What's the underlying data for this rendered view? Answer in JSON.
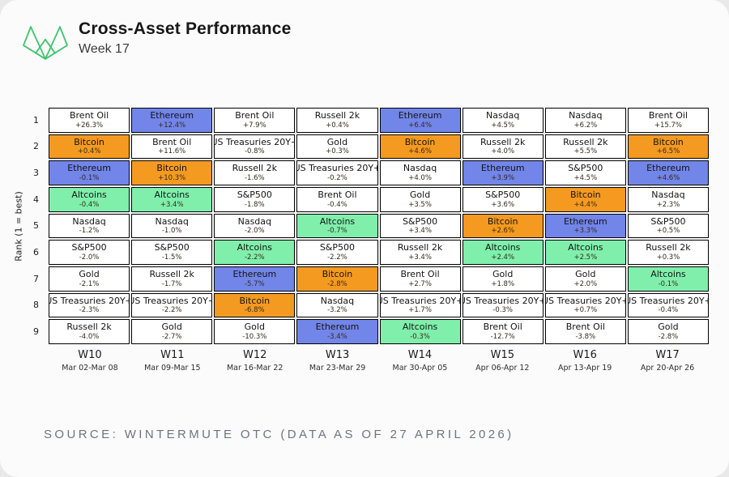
{
  "header": {
    "title": "Cross-Asset Performance",
    "subtitle": "Week 17",
    "logo": "wintermute-logo",
    "logo_color": "#3ec46d"
  },
  "asset_colors": {
    "Bitcoin": "#f59a20",
    "Ethereum": "#7285e8",
    "Altcoins": "#80efac",
    "default": "#ffffff"
  },
  "chart_data": {
    "type": "table",
    "title": "Cross-Asset Performance",
    "subtitle": "Week 17",
    "ylabel": "Rank (1 = best)",
    "ranks": [
      1,
      2,
      3,
      4,
      5,
      6,
      7,
      8,
      9
    ],
    "weeks": [
      {
        "label": "W10",
        "dates": "Mar 02-Mar 08",
        "cells": [
          {
            "asset": "Brent Oil",
            "change": "+26.3%"
          },
          {
            "asset": "Bitcoin",
            "change": "+0.4%"
          },
          {
            "asset": "Ethereum",
            "change": "-0.1%"
          },
          {
            "asset": "Altcoins",
            "change": "-0.4%"
          },
          {
            "asset": "Nasdaq",
            "change": "-1.2%"
          },
          {
            "asset": "S&P500",
            "change": "-2.0%"
          },
          {
            "asset": "Gold",
            "change": "-2.1%"
          },
          {
            "asset": "US Treasuries 20Y+",
            "change": "-2.3%"
          },
          {
            "asset": "Russell 2k",
            "change": "-4.0%"
          }
        ]
      },
      {
        "label": "W11",
        "dates": "Mar 09-Mar 15",
        "cells": [
          {
            "asset": "Ethereum",
            "change": "+12.4%"
          },
          {
            "asset": "Brent Oil",
            "change": "+11.6%"
          },
          {
            "asset": "Bitcoin",
            "change": "+10.3%"
          },
          {
            "asset": "Altcoins",
            "change": "+3.4%"
          },
          {
            "asset": "Nasdaq",
            "change": "-1.0%"
          },
          {
            "asset": "S&P500",
            "change": "-1.5%"
          },
          {
            "asset": "Russell 2k",
            "change": "-1.7%"
          },
          {
            "asset": "US Treasuries 20Y+",
            "change": "-2.2%"
          },
          {
            "asset": "Gold",
            "change": "-2.7%"
          }
        ]
      },
      {
        "label": "W12",
        "dates": "Mar 16-Mar 22",
        "cells": [
          {
            "asset": "Brent Oil",
            "change": "+7.9%"
          },
          {
            "asset": "US Treasuries 20Y+",
            "change": "-0.8%"
          },
          {
            "asset": "Russell 2k",
            "change": "-1.6%"
          },
          {
            "asset": "S&P500",
            "change": "-1.8%"
          },
          {
            "asset": "Nasdaq",
            "change": "-2.0%"
          },
          {
            "asset": "Altcoins",
            "change": "-2.2%"
          },
          {
            "asset": "Ethereum",
            "change": "-5.7%"
          },
          {
            "asset": "Bitcoin",
            "change": "-6.8%"
          },
          {
            "asset": "Gold",
            "change": "-10.3%"
          }
        ]
      },
      {
        "label": "W13",
        "dates": "Mar 23-Mar 29",
        "cells": [
          {
            "asset": "Russell 2k",
            "change": "+0.4%"
          },
          {
            "asset": "Gold",
            "change": "+0.3%"
          },
          {
            "asset": "US Treasuries 20Y+",
            "change": "-0.2%"
          },
          {
            "asset": "Brent Oil",
            "change": "-0.4%"
          },
          {
            "asset": "Altcoins",
            "change": "-0.7%"
          },
          {
            "asset": "S&P500",
            "change": "-2.2%"
          },
          {
            "asset": "Bitcoin",
            "change": "-2.8%"
          },
          {
            "asset": "Nasdaq",
            "change": "-3.2%"
          },
          {
            "asset": "Ethereum",
            "change": "-3.4%"
          }
        ]
      },
      {
        "label": "W14",
        "dates": "Mar 30-Apr 05",
        "cells": [
          {
            "asset": "Ethereum",
            "change": "+6.4%"
          },
          {
            "asset": "Bitcoin",
            "change": "+4.6%"
          },
          {
            "asset": "Nasdaq",
            "change": "+4.0%"
          },
          {
            "asset": "Gold",
            "change": "+3.5%"
          },
          {
            "asset": "S&P500",
            "change": "+3.4%"
          },
          {
            "asset": "Russell 2k",
            "change": "+3.4%"
          },
          {
            "asset": "Brent Oil",
            "change": "+2.7%"
          },
          {
            "asset": "US Treasuries 20Y+",
            "change": "+1.7%"
          },
          {
            "asset": "Altcoins",
            "change": "-0.3%"
          }
        ]
      },
      {
        "label": "W15",
        "dates": "Apr 06-Apr 12",
        "cells": [
          {
            "asset": "Nasdaq",
            "change": "+4.5%"
          },
          {
            "asset": "Russell 2k",
            "change": "+4.0%"
          },
          {
            "asset": "Ethereum",
            "change": "+3.9%"
          },
          {
            "asset": "S&P500",
            "change": "+3.6%"
          },
          {
            "asset": "Bitcoin",
            "change": "+2.6%"
          },
          {
            "asset": "Altcoins",
            "change": "+2.4%"
          },
          {
            "asset": "Gold",
            "change": "+1.8%"
          },
          {
            "asset": "US Treasuries 20Y+",
            "change": "-0.3%"
          },
          {
            "asset": "Brent Oil",
            "change": "-12.7%"
          }
        ]
      },
      {
        "label": "W16",
        "dates": "Apr 13-Apr 19",
        "cells": [
          {
            "asset": "Nasdaq",
            "change": "+6.2%"
          },
          {
            "asset": "Russell 2k",
            "change": "+5.5%"
          },
          {
            "asset": "S&P500",
            "change": "+4.5%"
          },
          {
            "asset": "Bitcoin",
            "change": "+4.4%"
          },
          {
            "asset": "Ethereum",
            "change": "+3.3%"
          },
          {
            "asset": "Altcoins",
            "change": "+2.5%"
          },
          {
            "asset": "Gold",
            "change": "+2.0%"
          },
          {
            "asset": "US Treasuries 20Y+",
            "change": "+0.7%"
          },
          {
            "asset": "Brent Oil",
            "change": "-3.8%"
          }
        ]
      },
      {
        "label": "W17",
        "dates": "Apr 20-Apr 26",
        "cells": [
          {
            "asset": "Brent Oil",
            "change": "+15.7%"
          },
          {
            "asset": "Bitcoin",
            "change": "+6.5%"
          },
          {
            "asset": "Ethereum",
            "change": "+4.6%"
          },
          {
            "asset": "Nasdaq",
            "change": "+2.3%"
          },
          {
            "asset": "S&P500",
            "change": "+0.5%"
          },
          {
            "asset": "Russell 2k",
            "change": "+0.3%"
          },
          {
            "asset": "Altcoins",
            "change": "-0.1%"
          },
          {
            "asset": "US Treasuries 20Y+",
            "change": "-0.4%"
          },
          {
            "asset": "Gold",
            "change": "-2.8%"
          }
        ]
      }
    ]
  },
  "footer": {
    "source": "SOURCE: WINTERMUTE OTC (DATA AS OF 27 APRIL 2026)"
  }
}
